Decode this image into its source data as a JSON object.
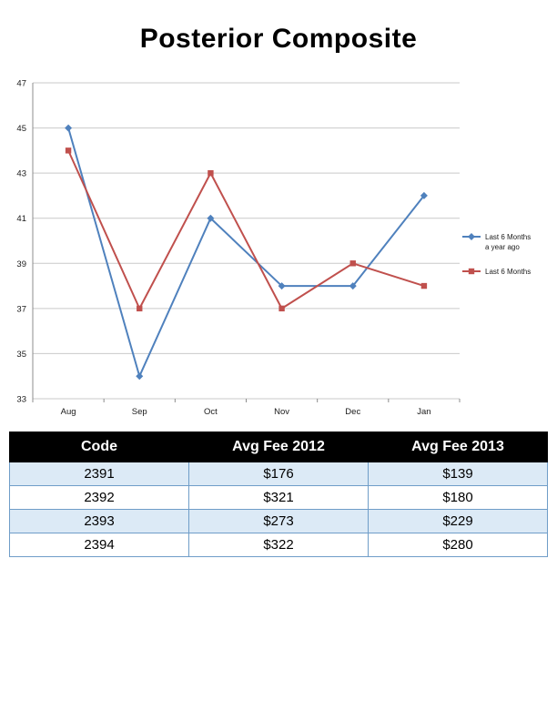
{
  "title": "Posterior Composite",
  "chart_data": {
    "type": "line",
    "title": "",
    "categories": [
      "Aug",
      "Sep",
      "Oct",
      "Nov",
      "Dec",
      "Jan"
    ],
    "series": [
      {
        "name": "Last 6 Months a year ago",
        "legend_lines": [
          "Last 6 Months",
          "a year ago"
        ],
        "color": "#4F81BD",
        "marker": "diamond",
        "values": [
          45,
          34,
          41,
          38,
          38,
          42
        ]
      },
      {
        "name": "Last 6 Months",
        "legend_lines": [
          "Last 6 Months"
        ],
        "color": "#C0504D",
        "marker": "square",
        "values": [
          44,
          37,
          43,
          37,
          39,
          38
        ]
      }
    ],
    "xlabel": "",
    "ylabel": "",
    "ylim": [
      33,
      47
    ],
    "ytick_step": 2,
    "grid": true,
    "legend_position": "right",
    "colors": {
      "grid": "#c9c9c9",
      "axis": "#8c8c8c"
    }
  },
  "table": {
    "columns": [
      "Code",
      "Avg Fee 2012",
      "Avg Fee 2013"
    ],
    "rows": [
      [
        "2391",
        "$176",
        "$139"
      ],
      [
        "2392",
        "$321",
        "$180"
      ],
      [
        "2393",
        "$273",
        "$229"
      ],
      [
        "2394",
        "$322",
        "$280"
      ]
    ],
    "colors": {
      "header_bg": "#000000",
      "header_text": "#ffffff",
      "row_alt_bg": "#dceaf6",
      "border": "#6f9dc8"
    }
  }
}
